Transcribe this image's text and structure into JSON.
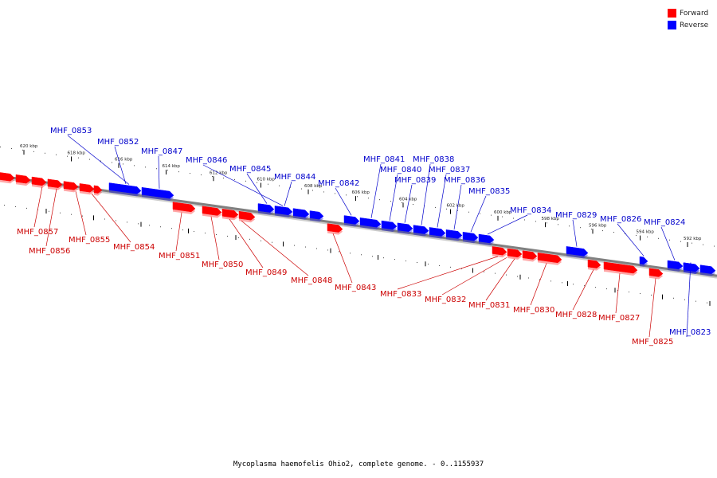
{
  "caption": "Mycoplasma haemofelis Ohio2, complete genome. - 0..1155937",
  "legend": [
    {
      "label": "Forward",
      "color": "#ff0000"
    },
    {
      "label": "Reverse",
      "color": "#0000ff"
    }
  ],
  "colors": {
    "forward": "#ff0000",
    "reverse": "#0000ff",
    "forward_label": "#cc0000",
    "reverse_label": "#0000cc",
    "backbone": "#808080"
  },
  "ticks": [
    {
      "label": "620 kbp",
      "pos": 620
    },
    {
      "label": "618 kbp",
      "pos": 618
    },
    {
      "label": "616 kbp",
      "pos": 616
    },
    {
      "label": "614 kbp",
      "pos": 614
    },
    {
      "label": "612 kbp",
      "pos": 612
    },
    {
      "label": "610 kbp",
      "pos": 610
    },
    {
      "label": "608 kbp",
      "pos": 608
    },
    {
      "label": "606 kbp",
      "pos": 606
    },
    {
      "label": "604 kbp",
      "pos": 604
    },
    {
      "label": "602 kbp",
      "pos": 602
    },
    {
      "label": "600 kbp",
      "pos": 600
    },
    {
      "label": "598 kbp",
      "pos": 598
    },
    {
      "label": "596 kbp",
      "pos": 596
    },
    {
      "label": "594 kbp",
      "pos": 594
    },
    {
      "label": "592 kbp",
      "pos": 592
    }
  ],
  "genes_reverse": [
    {
      "name": "MHF_0853"
    },
    {
      "name": "MHF_0852"
    },
    {
      "name": "MHF_0847"
    },
    {
      "name": "MHF_0846"
    },
    {
      "name": "MHF_0845"
    },
    {
      "name": "MHF_0844"
    },
    {
      "name": "MHF_0842"
    },
    {
      "name": "MHF_0841"
    },
    {
      "name": "MHF_0840"
    },
    {
      "name": "MHF_0839"
    },
    {
      "name": "MHF_0838"
    },
    {
      "name": "MHF_0837"
    },
    {
      "name": "MHF_0836"
    },
    {
      "name": "MHF_0835"
    },
    {
      "name": "MHF_0834"
    },
    {
      "name": "MHF_0829"
    },
    {
      "name": "MHF_0826"
    },
    {
      "name": "MHF_0824"
    },
    {
      "name": "MHF_0823"
    }
  ],
  "genes_forward": [
    {
      "name": "MHF_0857"
    },
    {
      "name": "MHF_0856"
    },
    {
      "name": "MHF_0855"
    },
    {
      "name": "MHF_0854"
    },
    {
      "name": "MHF_0851"
    },
    {
      "name": "MHF_0850"
    },
    {
      "name": "MHF_0849"
    },
    {
      "name": "MHF_0848"
    },
    {
      "name": "MHF_0843"
    },
    {
      "name": "MHF_0833"
    },
    {
      "name": "MHF_0832"
    },
    {
      "name": "MHF_0831"
    },
    {
      "name": "MHF_0830"
    },
    {
      "name": "MHF_0828"
    },
    {
      "name": "MHF_0827"
    },
    {
      "name": "MHF_0825"
    }
  ]
}
